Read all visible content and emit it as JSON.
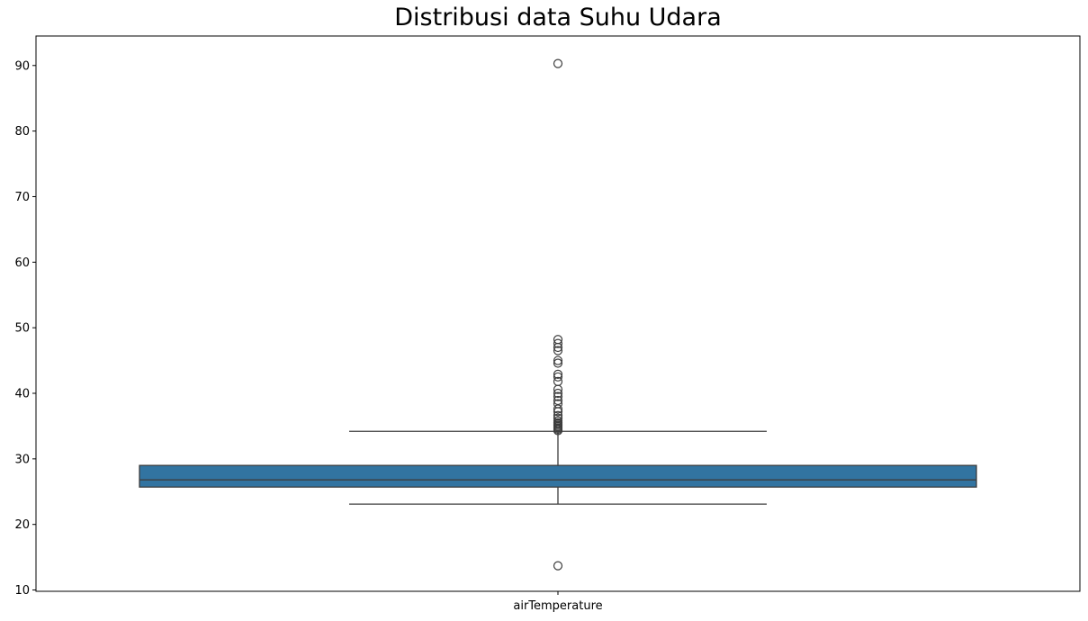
{
  "chart_data": {
    "type": "box",
    "title": "Distribusi data Suhu Udara",
    "xlabel": "",
    "ylabel": "",
    "categories": [
      "airTemperature"
    ],
    "ylim": [
      9.8,
      94.5
    ],
    "yticks": [
      10,
      20,
      30,
      40,
      50,
      60,
      70,
      80,
      90
    ],
    "grid": false,
    "box": {
      "q1": 25.7,
      "median": 26.8,
      "q3": 29.0,
      "whisker_low": 23.1,
      "whisker_high": 34.2,
      "color": "#3274a1"
    },
    "outliers": [
      13.7,
      34.3,
      34.5,
      34.7,
      34.9,
      35.1,
      35.3,
      35.5,
      35.8,
      36.2,
      36.6,
      37.2,
      37.6,
      38.4,
      38.9,
      39.5,
      40.0,
      40.6,
      41.8,
      42.5,
      42.9,
      44.6,
      45.0,
      46.5,
      47.0,
      47.6,
      48.2,
      90.3
    ]
  }
}
